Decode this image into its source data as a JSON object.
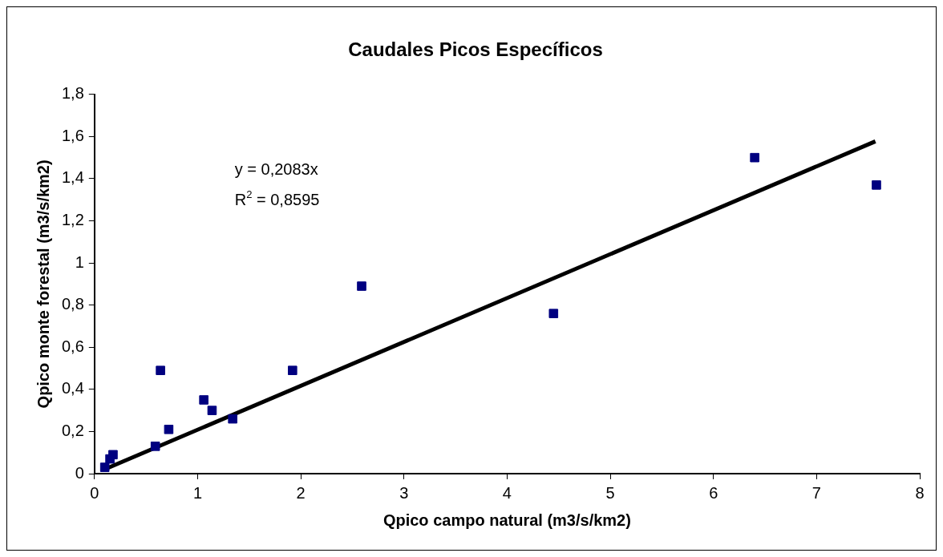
{
  "chart_data": {
    "type": "scatter",
    "title": "Caudales Picos Específicos",
    "xlabel": "Qpico campo natural (m3/s/km2)",
    "ylabel": "Qpico monte forestal (m3/s/km2)",
    "annotations": [
      "y = 0,2083x",
      "R$^{2}$ = 0,8595"
    ],
    "series": [
      {
        "color": "#000080",
        "x": [
          0.1,
          0.15,
          0.18,
          0.59,
          0.64,
          0.72,
          1.06,
          1.14,
          1.34,
          1.92,
          2.59,
          4.45,
          6.4,
          7.58
        ],
        "values": [
          0.03,
          0.07,
          0.09,
          0.13,
          0.49,
          0.21,
          0.35,
          0.3,
          0.26,
          0.49,
          0.89,
          0.76,
          1.5,
          1.37
        ]
      },
      {
        "type": "line",
        "color": "#000000",
        "marker": "none",
        "x": [
          0.1,
          7.57
        ],
        "values": [
          0.021,
          1.577
        ]
      }
    ],
    "xlim": [
      0,
      8
    ],
    "xticks": [
      0,
      1,
      2,
      3,
      4,
      5,
      6,
      7,
      8
    ],
    "ylim": [
      0,
      1.8
    ],
    "yticks": [
      0,
      {
        "value": 0.2,
        "label": "0,2"
      },
      {
        "value": 0.4,
        "label": "0,4"
      },
      {
        "value": 0.6,
        "label": "0,6"
      },
      {
        "value": 0.8,
        "label": "0,8"
      },
      1,
      {
        "value": 1.2,
        "label": "1,2"
      },
      {
        "value": 1.4,
        "label": "1,4"
      },
      {
        "value": 1.6,
        "label": "1,6"
      },
      {
        "value": 1.8,
        "label": "1,8"
      }
    ],
    "grid": false,
    "legend": false,
    "marker": "square"
  }
}
